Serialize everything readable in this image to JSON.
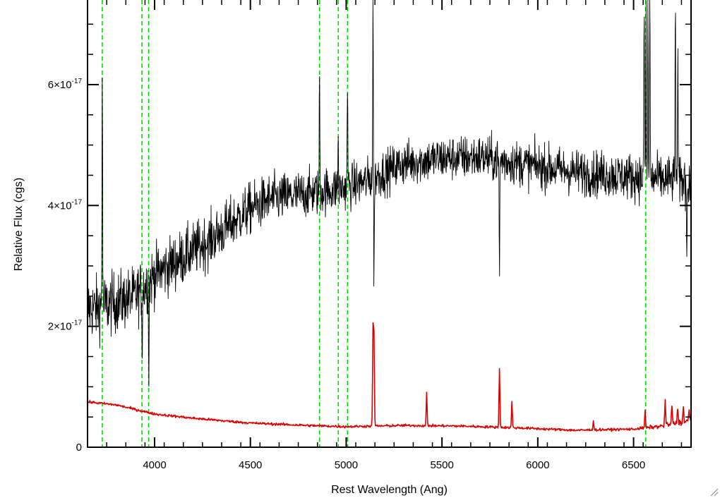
{
  "chart_data": {
    "type": "line",
    "title": "",
    "xlabel": "Rest Wavelength (Ang)",
    "ylabel": "Relative Flux (cgs)",
    "xlim": [
      3650,
      6800
    ],
    "ylim": [
      0,
      7.4e-17
    ],
    "x_ticks": [
      {
        "value": 4000,
        "label": "4000"
      },
      {
        "value": 4500,
        "label": "4500"
      },
      {
        "value": 5000,
        "label": "5000"
      },
      {
        "value": 5500,
        "label": "5500"
      },
      {
        "value": 6000,
        "label": "6000"
      },
      {
        "value": 6500,
        "label": "6500"
      }
    ],
    "y_ticks": [
      {
        "value": 0,
        "label": "0"
      },
      {
        "value": 2e-17,
        "mant": "2×10",
        "exp": "-17"
      },
      {
        "value": 4e-17,
        "mant": "4×10",
        "exp": "-17"
      },
      {
        "value": 6e-17,
        "mant": "6×10",
        "exp": "-17"
      }
    ],
    "reference_lines": {
      "color": "#00dd00",
      "style": "dashed",
      "x": [
        3727,
        3934,
        3969,
        4861,
        4959,
        5007,
        6563
      ]
    },
    "series": [
      {
        "color": "#000000",
        "profile": [
          [
            3650,
            2.3e-17
          ],
          [
            3700,
            2.3e-17
          ],
          [
            3800,
            2.4e-17
          ],
          [
            3900,
            2.5e-17
          ],
          [
            4000,
            2.85e-17
          ],
          [
            4100,
            3.05e-17
          ],
          [
            4200,
            3.25e-17
          ],
          [
            4300,
            3.45e-17
          ],
          [
            4400,
            3.7e-17
          ],
          [
            4500,
            3.95e-17
          ],
          [
            4600,
            4.1e-17
          ],
          [
            4700,
            4.15e-17
          ],
          [
            4800,
            4.2e-17
          ],
          [
            4900,
            4.25e-17
          ],
          [
            5000,
            4.3e-17
          ],
          [
            5100,
            4.4e-17
          ],
          [
            5200,
            4.55e-17
          ],
          [
            5300,
            4.7e-17
          ],
          [
            5500,
            4.78e-17
          ],
          [
            5700,
            4.8e-17
          ],
          [
            5900,
            4.7e-17
          ],
          [
            6000,
            4.65e-17
          ],
          [
            6200,
            4.55e-17
          ],
          [
            6400,
            4.5e-17
          ],
          [
            6600,
            4.45e-17
          ],
          [
            6800,
            4.4e-17
          ]
        ],
        "noise_sigma": [
          [
            3650,
            5e-18
          ],
          [
            4000,
            4.5e-18
          ],
          [
            4500,
            4e-18
          ],
          [
            5000,
            3.5e-18
          ],
          [
            6000,
            3.5e-18
          ],
          [
            6800,
            3.8e-18
          ]
        ],
        "features": [
          {
            "x": 3727,
            "y": 6.4e-17
          },
          {
            "x": 3935,
            "y": 1.6e-17
          },
          {
            "x": 3970,
            "y": 1.3e-17
          },
          {
            "x": 4861,
            "y": 6.1e-17
          },
          {
            "x": 4958,
            "y": 5.1e-17
          },
          {
            "x": 5007,
            "y": 6.1e-17
          },
          {
            "x": 5140,
            "y": 7.4e-17
          },
          {
            "x": 5145,
            "y": 2.7e-17
          },
          {
            "x": 5800,
            "y": 2.8e-17
          },
          {
            "x": 6555,
            "y": 7.4e-17
          },
          {
            "x": 6565,
            "y": 7.4e-17
          },
          {
            "x": 6575,
            "y": 7.4e-17
          },
          {
            "x": 6585,
            "y": 7.4e-17
          },
          {
            "x": 6718,
            "y": 7.4e-17
          },
          {
            "x": 6731,
            "y": 6.3e-17
          },
          {
            "x": 6778,
            "y": 3.1e-17
          }
        ]
      },
      {
        "color": "#dd0000",
        "profile": [
          [
            3650,
            7.5e-18
          ],
          [
            3800,
            7e-18
          ],
          [
            4000,
            5.5e-18
          ],
          [
            4200,
            4.8e-18
          ],
          [
            4500,
            4e-18
          ],
          [
            4800,
            3.6e-18
          ],
          [
            5000,
            3.4e-18
          ],
          [
            5300,
            3.6e-18
          ],
          [
            5600,
            3.5e-18
          ],
          [
            5900,
            3.2e-18
          ],
          [
            6200,
            2.8e-18
          ],
          [
            6500,
            3e-18
          ],
          [
            6650,
            3.5e-18
          ],
          [
            6800,
            4.5e-18
          ]
        ],
        "noise_sigma": [
          [
            3650,
            2e-19
          ],
          [
            6500,
            2e-19
          ],
          [
            6800,
            5e-19
          ]
        ],
        "features": [
          {
            "x": 5140,
            "y": 1.95e-17
          },
          {
            "x": 5145,
            "y": 1.8e-17
          },
          {
            "x": 5420,
            "y": 9e-18
          },
          {
            "x": 5800,
            "y": 1.3e-17
          },
          {
            "x": 5865,
            "y": 7.5e-18
          },
          {
            "x": 6290,
            "y": 4.5e-18
          },
          {
            "x": 6560,
            "y": 6e-18
          },
          {
            "x": 6665,
            "y": 8e-18
          },
          {
            "x": 6700,
            "y": 7e-18
          },
          {
            "x": 6730,
            "y": 6.5e-18
          },
          {
            "x": 6760,
            "y": 6.5e-18
          },
          {
            "x": 6790,
            "y": 6e-18
          }
        ]
      }
    ]
  }
}
